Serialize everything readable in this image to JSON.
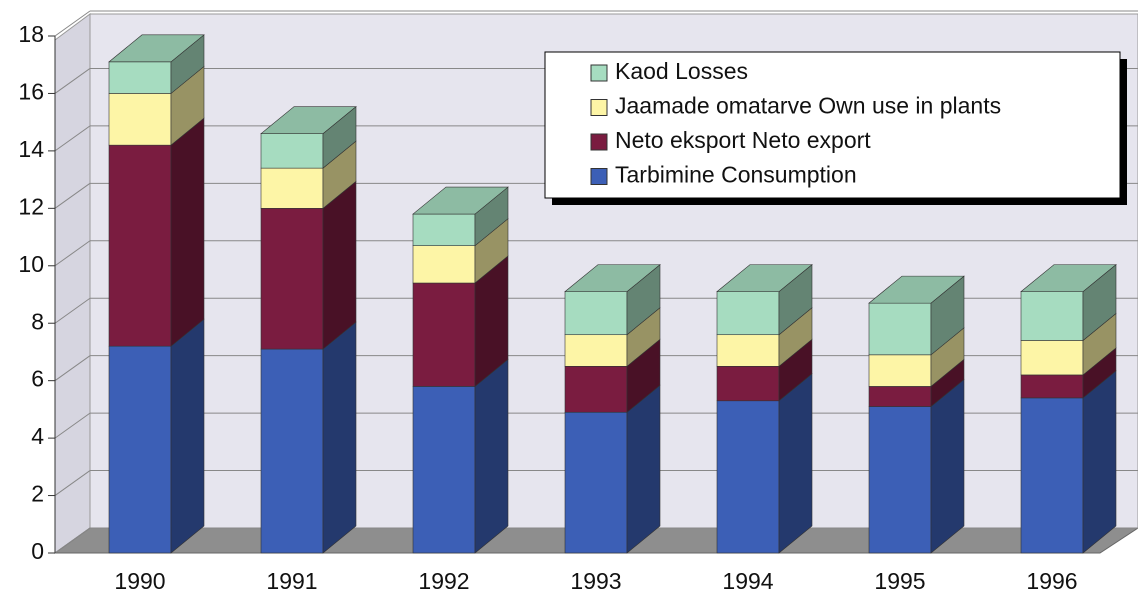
{
  "chart_data": {
    "type": "bar3d_stacked",
    "categories": [
      "1990",
      "1991",
      "1992",
      "1993",
      "1994",
      "1995",
      "1996"
    ],
    "series": [
      {
        "name": "Tarbimine Consumption",
        "color": "#3c5fb6",
        "values": [
          7.2,
          7.1,
          5.8,
          4.9,
          5.3,
          5.1,
          5.4
        ]
      },
      {
        "name": "Neto eksport Neto export",
        "color": "#7a1c40",
        "values": [
          7.0,
          4.9,
          3.6,
          1.6,
          1.2,
          0.7,
          0.8
        ]
      },
      {
        "name": "Jaamade omatarve Own use in plants",
        "color": "#fdf5a6",
        "values": [
          1.8,
          1.4,
          1.3,
          1.1,
          1.1,
          1.1,
          1.2
        ]
      },
      {
        "name": "Kaod Losses",
        "color": "#a6dcc0",
        "values": [
          1.1,
          1.2,
          1.1,
          1.5,
          1.5,
          1.8,
          1.7
        ]
      }
    ],
    "ylim": [
      0,
      18
    ],
    "yticks": [
      0,
      2,
      4,
      6,
      8,
      10,
      12,
      14,
      16,
      18
    ],
    "grid": true,
    "legend": "top-right"
  }
}
